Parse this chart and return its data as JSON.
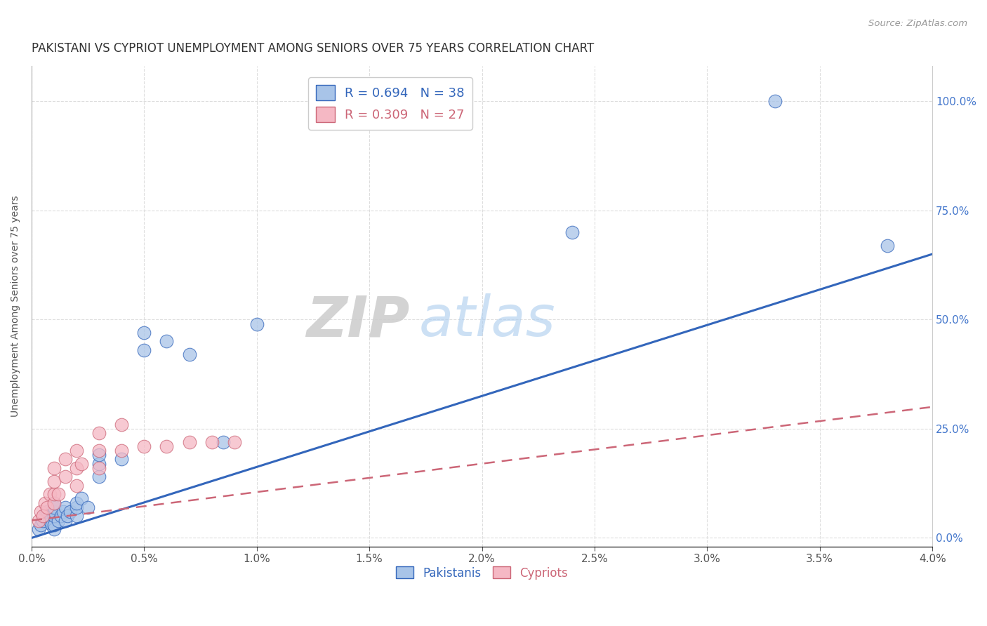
{
  "title": "PAKISTANI VS CYPRIOT UNEMPLOYMENT AMONG SENIORS OVER 75 YEARS CORRELATION CHART",
  "source": "Source: ZipAtlas.com",
  "xlabel_ticks": [
    "0.0%",
    "0.5%",
    "1.0%",
    "1.5%",
    "2.0%",
    "2.5%",
    "3.0%",
    "3.5%",
    "4.0%"
  ],
  "ylabel_ticks": [
    "0.0%",
    "25.0%",
    "50.0%",
    "75.0%",
    "100.0%"
  ],
  "ylabel_label": "Unemployment Among Seniors over 75 years",
  "xlim": [
    0.0,
    0.04
  ],
  "ylim": [
    -0.02,
    1.08
  ],
  "pakistani_R": 0.694,
  "pakistani_N": 38,
  "cypriot_R": 0.309,
  "cypriot_N": 27,
  "pakistani_color": "#a8c4e8",
  "cypriot_color": "#f5b8c4",
  "pakistani_line_color": "#3366bb",
  "cypriot_line_color": "#cc6677",
  "watermark_zip": "ZIP",
  "watermark_atlas": "atlas",
  "pakistani_x": [
    0.0003,
    0.0004,
    0.0005,
    0.0006,
    0.0007,
    0.0008,
    0.0009,
    0.001,
    0.001,
    0.001,
    0.001,
    0.001,
    0.001,
    0.0012,
    0.0013,
    0.0014,
    0.0015,
    0.0015,
    0.0016,
    0.0017,
    0.002,
    0.002,
    0.002,
    0.0022,
    0.0025,
    0.003,
    0.003,
    0.003,
    0.004,
    0.005,
    0.005,
    0.006,
    0.007,
    0.0085,
    0.01,
    0.024,
    0.033,
    0.038
  ],
  "pakistani_y": [
    0.02,
    0.03,
    0.04,
    0.05,
    0.06,
    0.04,
    0.03,
    0.02,
    0.03,
    0.05,
    0.06,
    0.07,
    0.08,
    0.04,
    0.05,
    0.06,
    0.04,
    0.07,
    0.05,
    0.06,
    0.05,
    0.07,
    0.08,
    0.09,
    0.07,
    0.14,
    0.17,
    0.19,
    0.18,
    0.43,
    0.47,
    0.45,
    0.42,
    0.22,
    0.49,
    0.7,
    1.0,
    0.67
  ],
  "cypriot_x": [
    0.0003,
    0.0004,
    0.0005,
    0.0006,
    0.0007,
    0.0008,
    0.001,
    0.001,
    0.001,
    0.001,
    0.0012,
    0.0015,
    0.0015,
    0.002,
    0.002,
    0.002,
    0.0022,
    0.003,
    0.003,
    0.003,
    0.004,
    0.004,
    0.005,
    0.006,
    0.007,
    0.008,
    0.009
  ],
  "cypriot_y": [
    0.04,
    0.06,
    0.05,
    0.08,
    0.07,
    0.1,
    0.08,
    0.1,
    0.13,
    0.16,
    0.1,
    0.14,
    0.18,
    0.12,
    0.16,
    0.2,
    0.17,
    0.16,
    0.2,
    0.24,
    0.2,
    0.26,
    0.21,
    0.21,
    0.22,
    0.22,
    0.22
  ],
  "pak_line_x0": 0.0,
  "pak_line_y0": 0.0,
  "pak_line_x1": 0.04,
  "pak_line_y1": 0.65,
  "cyp_line_x0": 0.0,
  "cyp_line_y0": 0.04,
  "cyp_line_x1": 0.04,
  "cyp_line_y1": 0.3
}
